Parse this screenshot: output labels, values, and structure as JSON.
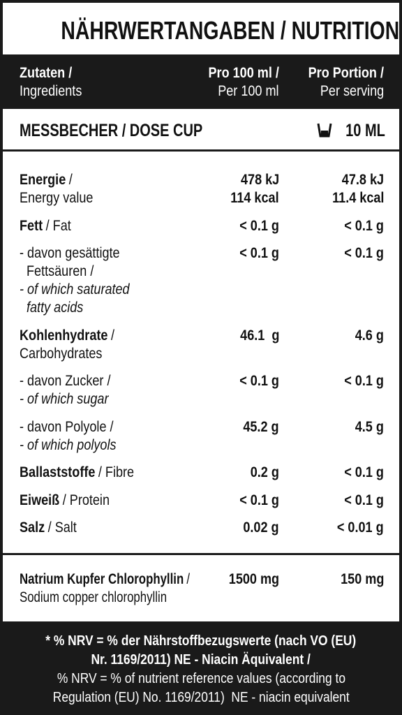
{
  "title": "NÄHRWERTANGABEN / NUTRITIONAL FACTS",
  "header": {
    "ingredients": [
      {
        "bold": "Zutaten /"
      },
      {
        "text": "Ingredients"
      }
    ],
    "per100": [
      {
        "bold": "Pro 100 ml /"
      },
      {
        "text": "Per 100 ml"
      }
    ],
    "perServing": [
      {
        "bold": "Pro Portion /"
      },
      {
        "text": "Per serving"
      }
    ]
  },
  "dose": {
    "label": "MESSBECHER / DOSE CUP",
    "value": "10 ML"
  },
  "rows": [
    {
      "label": [
        {
          "bold": "Energie",
          "text": "/"
        },
        {
          "text": "Energy value"
        }
      ],
      "per100": [
        "478 kJ",
        "114 kcal"
      ],
      "perServing": [
        "47.8 kJ",
        "11.4 kcal"
      ]
    },
    {
      "label": [
        {
          "bold": "Fett",
          "text": "/ Fat"
        }
      ],
      "per100": [
        "< 0.1 g"
      ],
      "perServing": [
        "< 0.1 g"
      ]
    },
    {
      "label": [
        {
          "text": "- davon gesättigte"
        },
        {
          "text": "Fettsäuren /"
        },
        {
          "italic": "- of which saturated"
        },
        {
          "italic": "fatty acids"
        }
      ],
      "per100": [
        "< 0.1 g"
      ],
      "perServing": [
        "< 0.1 g"
      ]
    },
    {
      "label": [
        {
          "bold": "Kohlenhydrate",
          "text": "/"
        },
        {
          "text": "Carbohydrates"
        }
      ],
      "per100": [
        "46.1  g"
      ],
      "perServing": [
        "4.6 g"
      ]
    },
    {
      "label": [
        {
          "text": "- davon Zucker /"
        },
        {
          "italic": "- of which sugar"
        }
      ],
      "per100": [
        "< 0.1 g"
      ],
      "perServing": [
        "< 0.1 g"
      ]
    },
    {
      "label": [
        {
          "text": "- davon Polyole /"
        },
        {
          "italic": "- of which polyols"
        }
      ],
      "per100": [
        "45.2 g"
      ],
      "perServing": [
        "4.5 g"
      ]
    },
    {
      "label": [
        {
          "bold": "Ballaststoffe",
          "text": "/ Fibre"
        }
      ],
      "per100": [
        "0.2 g"
      ],
      "perServing": [
        "< 0.1 g"
      ]
    },
    {
      "label": [
        {
          "bold": "Eiweiß",
          "text": "/ Protein"
        }
      ],
      "per100": [
        "< 0.1 g"
      ],
      "perServing": [
        "< 0.1 g"
      ]
    },
    {
      "label": [
        {
          "bold": "Salz",
          "text": "/ Salt"
        }
      ],
      "per100": [
        "0.02 g"
      ],
      "perServing": [
        "< 0.01 g"
      ]
    }
  ],
  "extra": {
    "label": [
      {
        "bold": "Natrium Kupfer Chlorophyllin",
        "text": "/"
      },
      {
        "text": "Sodium copper chlorophyllin"
      }
    ],
    "per100": [
      "1500 mg"
    ],
    "perServing": [
      "150 mg"
    ]
  },
  "footer": [
    {
      "bold": "* % NRV = % der Nährstoffbezugswerte (nach VO (EU)"
    },
    {
      "bold": "Nr. 1169/2011) NE - Niacin Äquivalent /"
    },
    {
      "text": "% NRV = % of nutrient reference values (according to"
    },
    {
      "text": "Regulation (EU) No. 1169/2011)  NE - niacin equivalent"
    }
  ]
}
